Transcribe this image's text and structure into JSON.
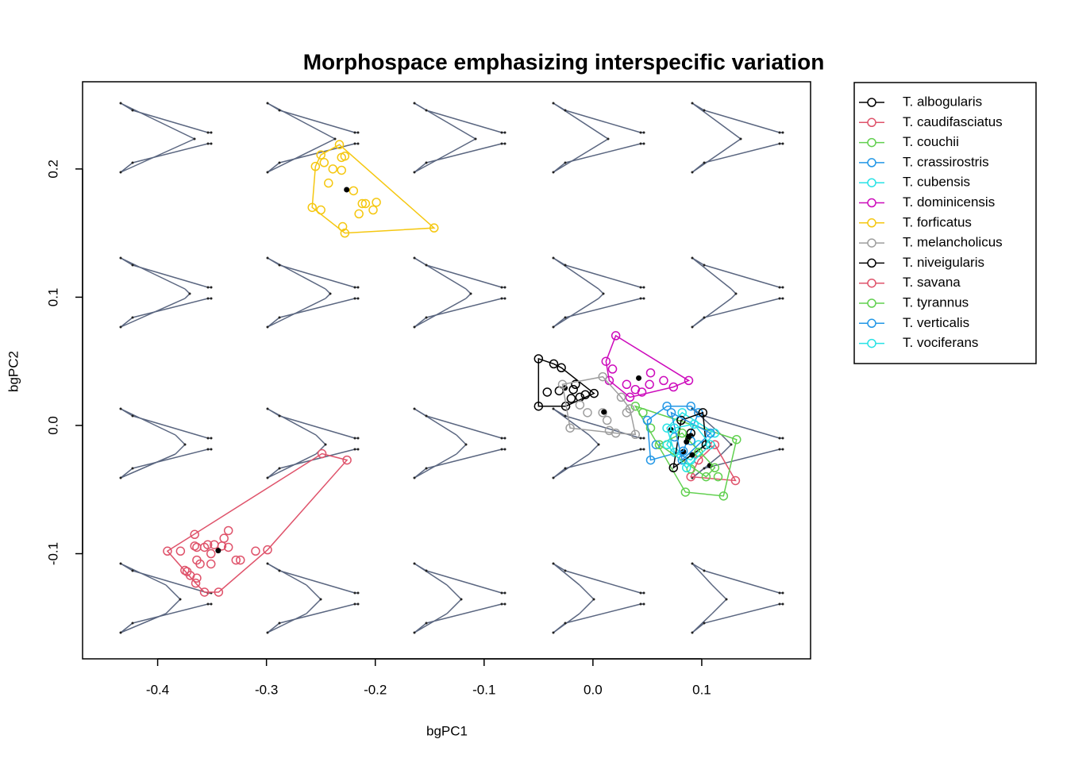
{
  "chart_data": {
    "type": "scatter",
    "title": "Morphospace emphasizing interspecific variation",
    "x_label": "bgPC1",
    "y_label": "bgPC2",
    "xlim": [
      -0.469,
      0.2
    ],
    "ylim": [
      -0.182,
      0.268
    ],
    "xticks": [
      -0.4,
      -0.3,
      -0.2,
      -0.1,
      {
        "value": 0,
        "label": "0.0"
      },
      0.1
    ],
    "yticks": [
      -0.1,
      {
        "value": 0,
        "label": "0.0"
      },
      0.1,
      0.2
    ],
    "grid": false,
    "legend": "outside-right",
    "series": [
      {
        "name": "T. albogularis",
        "color": "#000000",
        "x": [
          -0.05,
          -0.036,
          -0.029,
          -0.042,
          -0.031,
          -0.018,
          -0.016,
          -0.02,
          -0.012,
          0.001,
          -0.05,
          -0.025,
          -0.007
        ],
        "values": [
          0.052,
          0.048,
          0.045,
          0.026,
          0.027,
          0.028,
          0.032,
          0.021,
          0.022,
          0.025,
          0.015,
          0.015,
          0.024
        ]
      },
      {
        "name": "T. caudifasciatus",
        "color": "#DF536B",
        "x": [
          0.131,
          0.09,
          0.112,
          0.097
        ],
        "values": [
          -0.043,
          -0.04,
          -0.015,
          -0.027
        ]
      },
      {
        "name": "T. couchii",
        "color": "#61D04F",
        "x": [
          0.039,
          0.046,
          0.053,
          0.068,
          0.085,
          0.12,
          0.132,
          0.115,
          0.09
        ],
        "values": [
          0.015,
          0.01,
          -0.002,
          -0.015,
          -0.052,
          -0.055,
          -0.011,
          -0.04,
          -0.034
        ]
      },
      {
        "name": "T. crassirostris",
        "color": "#2297E6",
        "x": [
          0.05,
          0.053,
          0.068,
          0.09,
          0.097,
          0.058,
          0.075,
          0.083
        ],
        "values": [
          0.004,
          -0.027,
          0.015,
          0.015,
          0.01,
          -0.015,
          -0.009,
          -0.02
        ]
      },
      {
        "name": "T. cubensis",
        "color": "#28E2E5",
        "x": [
          0.068,
          0.082,
          0.097,
          0.075,
          0.112,
          0.09
        ],
        "values": [
          -0.002,
          0.01,
          -0.015,
          -0.021,
          -0.006,
          -0.027
        ]
      },
      {
        "name": "T. dominicensis",
        "color": "#CD0BBC",
        "x": [
          0.021,
          0.012,
          0.018,
          0.015,
          0.031,
          0.039,
          0.045,
          0.052,
          0.053,
          0.065,
          0.074,
          0.088,
          0.034
        ],
        "values": [
          0.07,
          0.05,
          0.044,
          0.035,
          0.032,
          0.028,
          0.026,
          0.032,
          0.041,
          0.035,
          0.03,
          0.035,
          0.022
        ]
      },
      {
        "name": "T. forficatus",
        "color": "#F5C710",
        "x": [
          -0.25,
          -0.255,
          -0.247,
          -0.239,
          -0.231,
          -0.228,
          -0.233,
          -0.231,
          -0.243,
          -0.22,
          -0.258,
          -0.25,
          -0.212,
          -0.209,
          -0.215,
          -0.202,
          -0.199,
          -0.23,
          -0.228,
          -0.146
        ],
        "values": [
          0.211,
          0.202,
          0.205,
          0.2,
          0.199,
          0.21,
          0.219,
          0.209,
          0.189,
          0.183,
          0.17,
          0.168,
          0.173,
          0.173,
          0.165,
          0.168,
          0.174,
          0.155,
          0.15,
          0.154
        ]
      },
      {
        "name": "T. melancholicus",
        "color": "#9E9E9E",
        "x": [
          -0.028,
          -0.021,
          -0.012,
          -0.005,
          0.009,
          0.013,
          0.021,
          0.031,
          0.039,
          0.009,
          0.026,
          0.034,
          0.015
        ],
        "values": [
          0.032,
          -0.002,
          0.016,
          0.01,
          0.01,
          0.004,
          -0.006,
          0.01,
          -0.007,
          0.038,
          0.022,
          0.013,
          -0.004
        ]
      },
      {
        "name": "T. niveigularis",
        "color": "#000000",
        "x": [
          0.074,
          0.101,
          0.081,
          0.104,
          0.09
        ],
        "values": [
          -0.033,
          0.01,
          0.004,
          -0.015,
          -0.006
        ]
      },
      {
        "name": "T. savana",
        "color": "#DF536B",
        "x": [
          -0.366,
          -0.357,
          -0.366,
          -0.364,
          -0.354,
          -0.348,
          -0.335,
          -0.339,
          -0.341,
          -0.335,
          -0.391,
          -0.379,
          -0.364,
          -0.351,
          -0.328,
          -0.324,
          -0.31,
          -0.299,
          -0.375,
          -0.373,
          -0.37,
          -0.364,
          -0.365,
          -0.357,
          -0.344,
          -0.351,
          -0.361,
          -0.249,
          -0.226
        ],
        "values": [
          -0.085,
          -0.095,
          -0.094,
          -0.095,
          -0.093,
          -0.093,
          -0.082,
          -0.088,
          -0.094,
          -0.095,
          -0.098,
          -0.098,
          -0.105,
          -0.1,
          -0.105,
          -0.105,
          -0.098,
          -0.097,
          -0.113,
          -0.114,
          -0.117,
          -0.119,
          -0.123,
          -0.13,
          -0.13,
          -0.108,
          -0.108,
          -0.022,
          -0.027
        ]
      },
      {
        "name": "T. tyrannus",
        "color": "#61D04F",
        "x": [
          0.061,
          0.097,
          0.112,
          0.082,
          0.104
        ],
        "values": [
          -0.015,
          -0.021,
          -0.033,
          -0.006,
          -0.04
        ]
      },
      {
        "name": "T. verticalis",
        "color": "#2297E6",
        "x": [
          0.072,
          0.09,
          0.108,
          0.082
        ],
        "values": [
          0.01,
          -0.012,
          -0.006,
          -0.027
        ]
      },
      {
        "name": "T. vociferans",
        "color": "#28E2E5",
        "x": [
          0.075,
          0.093,
          0.108,
          0.086,
          0.068
        ],
        "values": [
          -0.002,
          0.001,
          -0.015,
          -0.033,
          -0.015
        ]
      }
    ]
  }
}
